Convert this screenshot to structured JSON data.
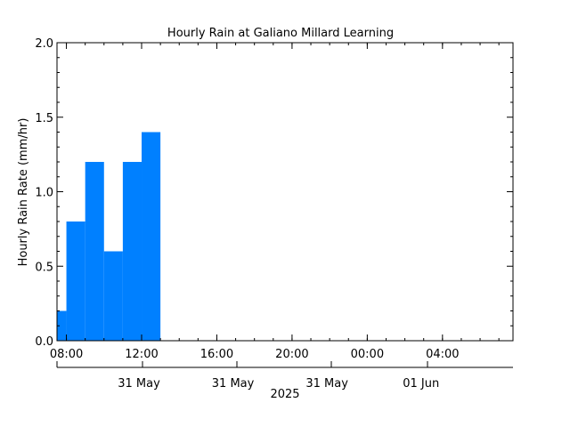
{
  "chart_data": {
    "type": "bar",
    "title": "Hourly Rain at Galiano Millard Learning",
    "ylabel": "Hourly Rain Rate (mm/hr)",
    "ylim": [
      0,
      2.0
    ],
    "yticks": [
      {
        "value": 0,
        "label": "0.0"
      },
      {
        "value": 0.5,
        "label": "0.5"
      },
      {
        "value": 1.0,
        "label": "1.0"
      },
      {
        "value": 1.5,
        "label": "1.5"
      },
      {
        "value": 2.0,
        "label": "2.0"
      }
    ],
    "xlim": [
      "2025-05-31 07:30",
      "2025-06-01 07:45"
    ],
    "xticks_time": [
      {
        "t": "2025-05-31 08:00",
        "label": "08:00"
      },
      {
        "t": "2025-05-31 12:00",
        "label": "12:00"
      },
      {
        "t": "2025-05-31 16:00",
        "label": "16:00"
      },
      {
        "t": "2025-05-31 20:00",
        "label": "20:00"
      },
      {
        "t": "2025-06-01 00:00",
        "label": "00:00"
      },
      {
        "t": "2025-06-01 04:00",
        "label": "04:00"
      }
    ],
    "xticks_date": [
      {
        "t": "2025-05-31 04:00",
        "label": "31 May"
      },
      {
        "t": "2025-05-31 09:00",
        "label": "31 May"
      },
      {
        "t": "2025-05-31 14:00",
        "label": "31 May"
      },
      {
        "t": "2025-05-31 19:00",
        "label": "31 May"
      }
    ],
    "xticks_date_labels_shown": [
      {
        "t": "2025-05-31 12:00",
        "label": "31 May"
      },
      {
        "t": "2025-05-31 17:00",
        "label": "31 May"
      },
      {
        "t": "2025-05-31 22:00",
        "label": "31 May"
      },
      {
        "t": "2025-06-01 03:00",
        "label": "01 Jun"
      }
    ],
    "year_label": "2025",
    "bars": [
      {
        "start": "2025-05-31 07:30",
        "end": "2025-05-31 08:00",
        "value": 0.2
      },
      {
        "start": "2025-05-31 08:00",
        "end": "2025-05-31 09:00",
        "value": 0.8
      },
      {
        "start": "2025-05-31 09:00",
        "end": "2025-05-31 10:00",
        "value": 1.2
      },
      {
        "start": "2025-05-31 10:00",
        "end": "2025-05-31 11:00",
        "value": 0.6
      },
      {
        "start": "2025-05-31 11:00",
        "end": "2025-05-31 12:00",
        "value": 1.2
      },
      {
        "start": "2025-05-31 12:00",
        "end": "2025-05-31 13:00",
        "value": 1.4
      }
    ],
    "bar_color": "#0080ff",
    "grid": false
  }
}
